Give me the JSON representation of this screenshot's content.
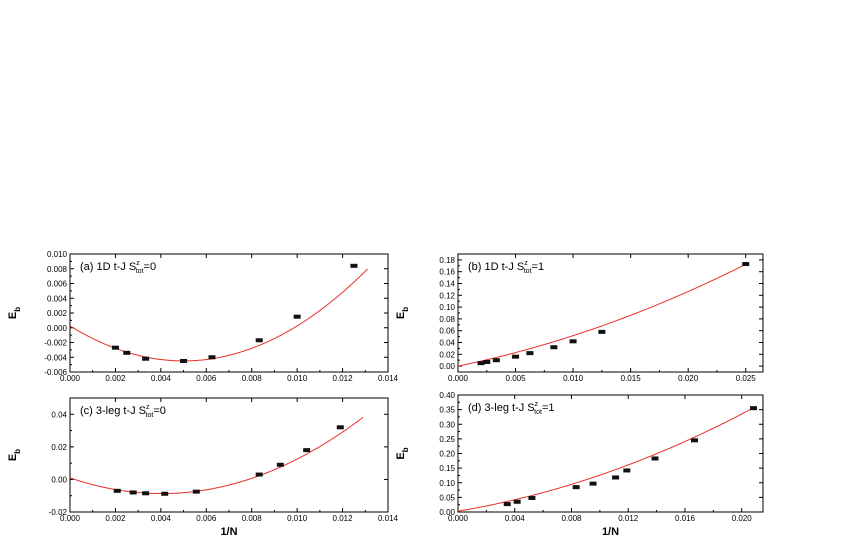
{
  "chart_data": [
    {
      "type": "scatter",
      "panel_label": "(a) 1D t-J S",
      "panel_label_sup": "z",
      "panel_label_sub": "tot",
      "panel_label_tail": "=0",
      "xlabel": "",
      "ylabel": "E",
      "ylabel_sub": "b",
      "xlim": [
        0.0,
        0.014
      ],
      "ylim": [
        -0.006,
        0.01
      ],
      "xticks": [
        0.0,
        0.002,
        0.004,
        0.006,
        0.008,
        0.01,
        0.012,
        0.014
      ],
      "yticks": [
        -0.006,
        -0.004,
        -0.002,
        0.0,
        0.002,
        0.004,
        0.006,
        0.008,
        0.01
      ],
      "xtick_labels": [
        "0.000",
        "0.002",
        "0.004",
        "0.006",
        "0.008",
        "0.010",
        "0.012",
        "0.014"
      ],
      "ytick_labels": [
        "-0.006",
        "-0.004",
        "-0.002",
        "0.000",
        "0.002",
        "0.004",
        "0.006",
        "0.008",
        "0.010"
      ],
      "points": {
        "x": [
          0.002,
          0.0025,
          0.00333,
          0.005,
          0.00625,
          0.00833,
          0.01,
          0.0125
        ],
        "y": [
          -0.0027,
          -0.0034,
          -0.0042,
          -0.0045,
          -0.004,
          -0.0017,
          0.0015,
          0.0084
        ]
      },
      "fit": {
        "poly": [
          0.00025,
          -1.9,
          190.0
        ],
        "xrange": [
          0.0,
          0.0131
        ]
      }
    },
    {
      "type": "scatter",
      "panel_label": "(b) 1D t-J S",
      "panel_label_sup": "z",
      "panel_label_sub": "tot",
      "panel_label_tail": "=1",
      "xlabel": "",
      "ylabel": "E",
      "ylabel_sub": "b",
      "xlim": [
        0.0,
        0.0265
      ],
      "ylim": [
        -0.01,
        0.19
      ],
      "xticks": [
        0.0,
        0.005,
        0.01,
        0.015,
        0.02,
        0.025
      ],
      "yticks": [
        0.0,
        0.02,
        0.04,
        0.06,
        0.08,
        0.1,
        0.12,
        0.14,
        0.16,
        0.18
      ],
      "xtick_labels": [
        "0.000",
        "0.005",
        "0.010",
        "0.015",
        "0.020",
        "0.025"
      ],
      "ytick_labels": [
        "0.00",
        "0.02",
        "0.04",
        "0.06",
        "0.08",
        "0.10",
        "0.12",
        "0.14",
        "0.16",
        "0.18"
      ],
      "points": {
        "x": [
          0.002,
          0.0025,
          0.00333,
          0.005,
          0.00625,
          0.00833,
          0.01,
          0.0125,
          0.025
        ],
        "y": [
          0.005,
          0.007,
          0.01,
          0.016,
          0.022,
          0.032,
          0.042,
          0.058,
          0.173
        ]
      },
      "fit": {
        "poly": [
          0.0,
          4.0,
          116.0
        ],
        "xrange": [
          0.0,
          0.025
        ]
      }
    },
    {
      "type": "scatter",
      "panel_label": "(c) 3-leg t-J S",
      "panel_label_sup": "z",
      "panel_label_sub": "tot",
      "panel_label_tail": "=0",
      "xlabel": "1/N",
      "ylabel": "E",
      "ylabel_sub": "b",
      "xlim": [
        0.0,
        0.014
      ],
      "ylim": [
        -0.02,
        0.05
      ],
      "xticks": [
        0.0,
        0.002,
        0.004,
        0.006,
        0.008,
        0.01,
        0.012,
        0.014
      ],
      "yticks": [
        -0.02,
        0.0,
        0.02,
        0.04
      ],
      "xtick_labels": [
        "0.000",
        "0.002",
        "0.004",
        "0.006",
        "0.008",
        "0.010",
        "0.012",
        "0.014"
      ],
      "ytick_labels": [
        "-0.02",
        "0.00",
        "0.02",
        "0.04"
      ],
      "points": {
        "x": [
          0.00208,
          0.00278,
          0.00333,
          0.00417,
          0.00556,
          0.00833,
          0.00926,
          0.01042,
          0.0119
        ],
        "y": [
          -0.007,
          -0.008,
          -0.0085,
          -0.0088,
          -0.0075,
          0.003,
          0.009,
          0.018,
          0.032
        ]
      },
      "fit": {
        "poly": [
          0.001,
          -4.8,
          595.0
        ],
        "xrange": [
          0.0,
          0.0129
        ]
      }
    },
    {
      "type": "scatter",
      "panel_label": "(d) 3-leg t-J S",
      "panel_label_sup": "z",
      "panel_label_sub": "tot",
      "panel_label_tail": "=1",
      "xlabel": "1/N",
      "ylabel": "E",
      "ylabel_sub": "b",
      "xlim": [
        0.0,
        0.0215
      ],
      "ylim": [
        0.0,
        0.4
      ],
      "xticks": [
        0.0,
        0.004,
        0.008,
        0.012,
        0.016,
        0.02
      ],
      "yticks": [
        0.0,
        0.05,
        0.1,
        0.15,
        0.2,
        0.25,
        0.3,
        0.35,
        0.4
      ],
      "xtick_labels": [
        "0.000",
        "0.004",
        "0.008",
        "0.012",
        "0.016",
        "0.020"
      ],
      "ytick_labels": [
        "0.00",
        "0.05",
        "0.10",
        "0.15",
        "0.20",
        "0.25",
        "0.30",
        "0.35",
        "0.40"
      ],
      "points": {
        "x": [
          0.00347,
          0.00417,
          0.00521,
          0.00833,
          0.00952,
          0.01111,
          0.0119,
          0.01389,
          0.01667,
          0.02083
        ],
        "y": [
          0.027,
          0.035,
          0.048,
          0.085,
          0.097,
          0.118,
          0.142,
          0.183,
          0.245,
          0.355
        ]
      },
      "fit": {
        "poly": [
          0.003,
          8.0,
          430.0
        ],
        "xrange": [
          0.0,
          0.0208
        ]
      }
    }
  ],
  "colors": {
    "fit_line": "#e8302a",
    "marker": "#111111",
    "axis": "#000000"
  }
}
